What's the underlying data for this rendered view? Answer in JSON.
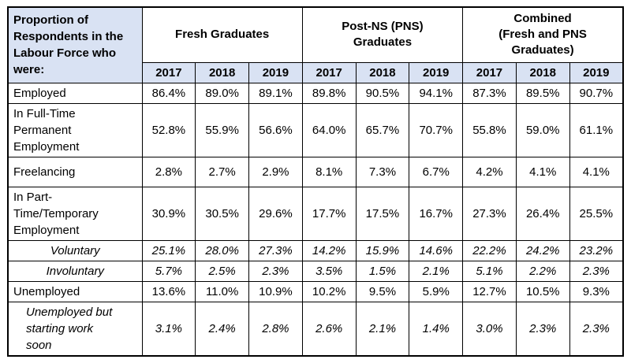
{
  "colors": {
    "header_fill": "#D9E2F3",
    "border": "#000000",
    "background": "#FFFFFF"
  },
  "table": {
    "corner_header": "Proportion of\nRespondents in the\nLabour Force who\nwere:",
    "groups": [
      {
        "label": "Fresh Graduates"
      },
      {
        "label": "Post-NS (PNS)\nGraduates"
      },
      {
        "label": "Combined\n(Fresh and PNS\nGraduates)"
      }
    ],
    "years": [
      "2017",
      "2018",
      "2019"
    ],
    "rows": [
      {
        "label": "Employed",
        "values": [
          "86.4%",
          "89.0%",
          "89.1%",
          "89.8%",
          "90.5%",
          "94.1%",
          "87.3%",
          "89.5%",
          "90.7%"
        ]
      },
      {
        "label": "In Full-Time\nPermanent\nEmployment",
        "values": [
          "52.8%",
          "55.9%",
          "56.6%",
          "64.0%",
          "65.7%",
          "70.7%",
          "55.8%",
          "59.0%",
          "61.1%"
        ]
      },
      {
        "label": "Freelancing",
        "spacious": true,
        "values": [
          "2.8%",
          "2.7%",
          "2.9%",
          "8.1%",
          "7.3%",
          "6.7%",
          "4.2%",
          "4.1%",
          "4.1%"
        ]
      },
      {
        "label": "In Part-\nTime/Temporary\nEmployment",
        "values": [
          "30.9%",
          "30.5%",
          "29.6%",
          "17.7%",
          "17.5%",
          "16.7%",
          "27.3%",
          "26.4%",
          "25.5%"
        ]
      },
      {
        "label": "Voluntary",
        "italic": true,
        "align": "center",
        "values": [
          "25.1%",
          "28.0%",
          "27.3%",
          "14.2%",
          "15.9%",
          "14.6%",
          "22.2%",
          "24.2%",
          "23.2%"
        ]
      },
      {
        "label": "Involuntary",
        "italic": true,
        "align": "center",
        "values": [
          "5.7%",
          "2.5%",
          "2.3%",
          "3.5%",
          "1.5%",
          "2.1%",
          "5.1%",
          "2.2%",
          "2.3%"
        ]
      },
      {
        "label": "Unemployed",
        "values": [
          "13.6%",
          "11.0%",
          "10.9%",
          "10.2%",
          "9.5%",
          "5.9%",
          "12.7%",
          "10.5%",
          "9.3%"
        ]
      },
      {
        "label": "Unemployed but\nstarting work\nsoon",
        "italic": true,
        "indent": true,
        "values": [
          "3.1%",
          "2.4%",
          "2.8%",
          "2.6%",
          "2.1%",
          "1.4%",
          "3.0%",
          "2.3%",
          "2.3%"
        ]
      }
    ]
  }
}
